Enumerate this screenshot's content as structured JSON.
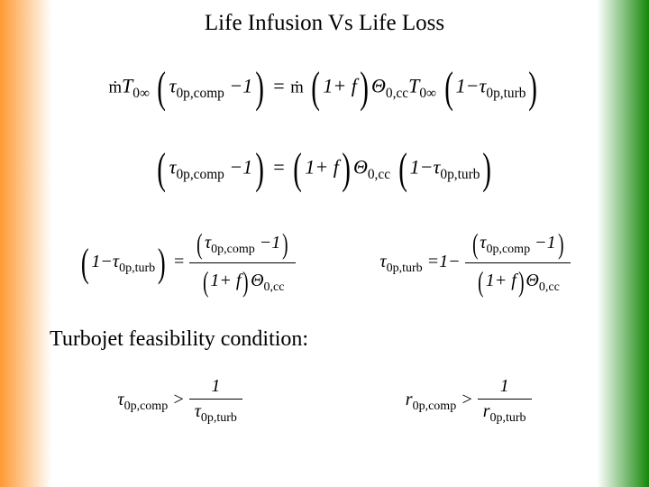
{
  "title": "Life Infusion Vs Life Loss",
  "eq1_left_prefix": "ṁ",
  "eq1_T": "T",
  "eq1_0inf": "0∞",
  "eq1_tau": "τ",
  "eq1_sub_comp": "0p,comp",
  "eq1_minus1": "−1",
  "eq1_eq": "=",
  "eq1_right_prefix": "ṁ",
  "eq1_1plusf": "1+ f",
  "eq1_theta": "Θ",
  "eq1_0cc": "0,cc",
  "eq1_sub_turb": "0p,turb",
  "eq1_1minus": "1−",
  "eq2_tau": "τ",
  "eq2_sub_comp": "0p,comp",
  "eq2_minus1": "−1",
  "eq2_eq": "=",
  "eq2_1plusf": "1+ f",
  "eq2_theta": "Θ",
  "eq2_0cc": "0,cc",
  "eq2_1minus": "1−",
  "eq2_sub_turb": "0p,turb",
  "eq3_1minus": "1−",
  "eq3_tau": "τ",
  "eq3_sub_turb": "0p,turb",
  "eq3_eq": "=",
  "eq3_sub_comp": "0p,comp",
  "eq3_minus1": "−1",
  "eq3_1plusf": "1+ f",
  "eq3_theta": "Θ",
  "eq3_0cc": "0,cc",
  "eq4_tau": "τ",
  "eq4_sub_turb": "0p,turb",
  "eq4_eq1minus": "=1−",
  "eq4_sub_comp": "0p,comp",
  "eq4_minus1": "−1",
  "eq4_1plusf": "1+ f",
  "eq4_theta": "Θ",
  "eq4_0cc": "0,cc",
  "subtitle": "Turbojet feasibility condition:",
  "eq5_tau": "τ",
  "eq5_sub_comp": "0p,comp",
  "eq5_gt": ">",
  "eq5_one": "1",
  "eq5_sub_turb": "0p,turb",
  "eq6_r": "r",
  "eq6_sub_comp": "0p,comp",
  "eq6_gt": ">",
  "eq6_one": "1",
  "eq6_sub_turb": "0p,turb"
}
